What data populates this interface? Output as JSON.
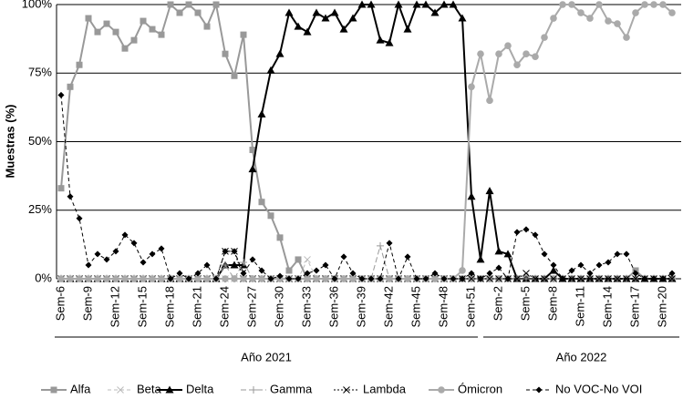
{
  "chart_data": {
    "type": "line",
    "y_label": "Muestras (%)",
    "categories": [
      "Sem-6",
      null,
      null,
      "Sem-9",
      null,
      null,
      "Sem-12",
      null,
      null,
      "Sem-15",
      null,
      null,
      "Sem-18",
      null,
      null,
      "Sem-21",
      null,
      null,
      "Sem-24",
      null,
      null,
      "Sem-27",
      null,
      null,
      "Sem-30",
      null,
      null,
      "Sem-33",
      null,
      null,
      "Sem-36",
      null,
      null,
      "Sem-39",
      null,
      null,
      "Sem-42",
      null,
      null,
      "Sem-45",
      null,
      null,
      "Sem-48",
      null,
      null,
      "Sem-51",
      null,
      null,
      "Sem-2",
      null,
      null,
      "Sem-5",
      null,
      null,
      "Sem-8",
      null,
      null,
      "Sem-11",
      null,
      null,
      "Sem-14",
      null,
      null,
      "Sem-17",
      null,
      null,
      "Sem-20",
      null
    ],
    "groups": [
      "Año 2021",
      "Año 2022"
    ],
    "ylim": [
      0,
      100
    ],
    "yticks": [
      {
        "value": 0,
        "label": "0%"
      },
      {
        "value": 25,
        "label": "25%"
      },
      {
        "value": 50,
        "label": "50%"
      },
      {
        "value": 75,
        "label": "75%"
      },
      {
        "value": 100,
        "label": "100%"
      }
    ],
    "grid": true,
    "legend": "bottom",
    "series": [
      {
        "name": "Alfa",
        "color": "#999999",
        "values": [
          33,
          70,
          78,
          95,
          90,
          93,
          90,
          84,
          87,
          94,
          91,
          89,
          100,
          97,
          100,
          97,
          92,
          100,
          82,
          74,
          89,
          47,
          28,
          23,
          15,
          3,
          7,
          0,
          0,
          0,
          0,
          0,
          0,
          0,
          0,
          0,
          0,
          0,
          0,
          0,
          0,
          0,
          0,
          0,
          0,
          0,
          0,
          0,
          0,
          0,
          0,
          0,
          0,
          0,
          0,
          0,
          0,
          0,
          0,
          0,
          0,
          0,
          0,
          3,
          0,
          0,
          0,
          0
        ]
      },
      {
        "name": "Beta",
        "color": "#bbbbbb",
        "values": [
          0,
          0,
          0,
          0,
          0,
          0,
          0,
          0,
          0,
          0,
          0,
          0,
          0,
          0,
          0,
          0,
          0,
          0,
          0,
          0,
          0,
          0,
          0,
          0,
          0,
          0,
          0,
          7,
          0,
          0,
          0,
          0,
          0,
          0,
          0,
          0,
          0,
          0,
          0,
          0,
          0,
          0,
          0,
          0,
          0,
          0,
          0,
          0,
          0,
          0,
          0,
          0,
          0,
          0,
          0,
          0,
          0,
          0,
          0,
          0,
          0,
          0,
          0,
          0,
          0,
          0,
          0,
          0
        ]
      },
      {
        "name": "Delta",
        "color": "#000000",
        "values": [
          0,
          0,
          0,
          0,
          0,
          0,
          0,
          0,
          0,
          0,
          0,
          0,
          0,
          0,
          0,
          0,
          0,
          0,
          5,
          5,
          5,
          40,
          60,
          76,
          82,
          97,
          92,
          90,
          97,
          95,
          97,
          91,
          95,
          100,
          100,
          87,
          86,
          100,
          91,
          100,
          100,
          97,
          100,
          100,
          95,
          30,
          7,
          32,
          10,
          9,
          0,
          0,
          0,
          0,
          3,
          0,
          0,
          0,
          0,
          0,
          0,
          0,
          0,
          0,
          0,
          0,
          0,
          0
        ]
      },
      {
        "name": "Gamma",
        "color": "#999999",
        "values": [
          0,
          0,
          0,
          0,
          0,
          0,
          0,
          0,
          0,
          0,
          0,
          0,
          0,
          0,
          0,
          0,
          0,
          0,
          5,
          0,
          6,
          0,
          0,
          0,
          0,
          0,
          0,
          0,
          0,
          0,
          0,
          0,
          0,
          0,
          0,
          12,
          0,
          0,
          0,
          0,
          0,
          0,
          0,
          0,
          0,
          0,
          0,
          0,
          0,
          0,
          0,
          0,
          0,
          0,
          0,
          0,
          0,
          0,
          0,
          0,
          0,
          0,
          0,
          0,
          0,
          0,
          0,
          0
        ]
      },
      {
        "name": "Lambda",
        "color": "#000000",
        "values": [
          0,
          0,
          0,
          0,
          0,
          0,
          0,
          0,
          0,
          0,
          0,
          0,
          0,
          0,
          0,
          0,
          0,
          0,
          10,
          10,
          0,
          0,
          0,
          0,
          0,
          0,
          0,
          0,
          0,
          0,
          0,
          0,
          0,
          0,
          0,
          0,
          0,
          0,
          0,
          0,
          0,
          0,
          0,
          0,
          0,
          0,
          0,
          0,
          0,
          0,
          0,
          2,
          0,
          0,
          0,
          0,
          0,
          0,
          0,
          0,
          0,
          0,
          0,
          0,
          0,
          0,
          0,
          0
        ]
      },
      {
        "name": "Ómicron",
        "color": "#aaaaaa",
        "values": [
          0,
          0,
          0,
          0,
          0,
          0,
          0,
          0,
          0,
          0,
          0,
          0,
          0,
          0,
          0,
          0,
          0,
          0,
          0,
          0,
          0,
          0,
          0,
          0,
          0,
          0,
          0,
          0,
          0,
          0,
          0,
          0,
          0,
          0,
          0,
          0,
          0,
          0,
          0,
          0,
          0,
          0,
          0,
          0,
          3,
          70,
          82,
          65,
          82,
          85,
          78,
          82,
          81,
          88,
          95,
          100,
          100,
          97,
          95,
          100,
          94,
          93,
          88,
          97,
          100,
          100,
          100,
          97
        ]
      },
      {
        "name": "No VOC-No VOI",
        "color": "#000000",
        "values": [
          67,
          30,
          22,
          5,
          9,
          7,
          10,
          16,
          13,
          6,
          9,
          11,
          0,
          2,
          0,
          2,
          5,
          0,
          10,
          10,
          2,
          7,
          3,
          0,
          1,
          0,
          0,
          2,
          3,
          5,
          0,
          8,
          2,
          0,
          0,
          0,
          13,
          0,
          8,
          0,
          0,
          2,
          0,
          0,
          0,
          2,
          0,
          2,
          4,
          0,
          17,
          18,
          16,
          9,
          5,
          0,
          3,
          5,
          2,
          5,
          6,
          9,
          9,
          2,
          0,
          0,
          0,
          2
        ]
      }
    ]
  }
}
